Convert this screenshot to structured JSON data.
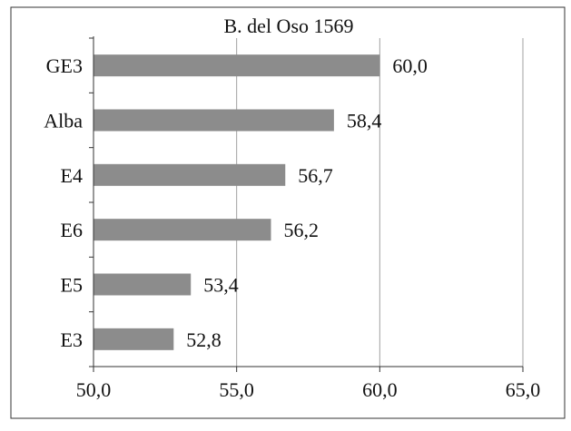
{
  "chart_data": {
    "type": "bar",
    "orientation": "horizontal",
    "title": "B. del Oso 1569",
    "categories": [
      "GE3",
      "Alba",
      "E4",
      "E6",
      "E5",
      "E3"
    ],
    "values": [
      60.0,
      58.4,
      56.7,
      56.2,
      53.4,
      52.8
    ],
    "value_labels": [
      "60,0",
      "58,4",
      "56,7",
      "56,2",
      "53,4",
      "52,8"
    ],
    "xlim": [
      50.0,
      65.0
    ],
    "x_ticks": [
      50.0,
      55.0,
      60.0,
      65.0
    ],
    "x_tick_labels": [
      "50,0",
      "55,0",
      "60,0",
      "65,0"
    ],
    "xlabel": "",
    "ylabel": "",
    "grid": "vertical",
    "legend": "none",
    "bar_color": "#8c8c8c",
    "grid_color": "#a0a0a0",
    "frame_color": "#333333"
  }
}
